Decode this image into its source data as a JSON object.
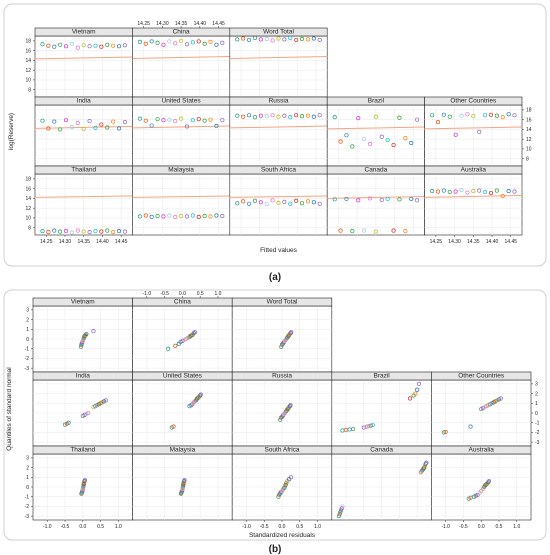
{
  "figure": {
    "panel_a_label": "(a)",
    "panel_b_label": "(b)"
  },
  "chart_data": [
    {
      "type": "scatter",
      "id": "a",
      "xlabel": "Fitted values",
      "ylabel": "log(Reserve)",
      "xlim": [
        14.22,
        14.48
      ],
      "ylim": [
        6.5,
        19
      ],
      "xticks": [
        14.25,
        14.3,
        14.35,
        14.4,
        14.45
      ],
      "yticks": [
        8,
        10,
        12,
        14,
        16,
        18
      ],
      "panels": [
        {
          "title": "Vietnam",
          "fit": [
            14.3,
            14.7
          ],
          "values": [
            17.3,
            17.0,
            16.8,
            17.2,
            16.9,
            17.4,
            16.6,
            17.1,
            16.9,
            17.0,
            16.8,
            17.2,
            17.0,
            16.9,
            17.1
          ]
        },
        {
          "title": "China",
          "fit": [
            14.4,
            14.8
          ],
          "values": [
            17.8,
            17.4,
            17.9,
            17.6,
            17.2,
            17.9,
            17.5,
            18.0,
            17.3,
            17.7,
            17.9,
            17.4,
            17.8,
            17.2,
            17.6
          ]
        },
        {
          "title": "Word Total",
          "fit": [
            14.4,
            14.8
          ],
          "values": [
            18.3,
            18.5,
            18.2,
            18.6,
            18.3,
            18.4,
            18.1,
            18.5,
            18.3,
            18.6,
            18.2,
            18.4,
            18.3,
            18.5,
            18.2
          ]
        },
        {
          "title": "India",
          "fit": [
            14.2,
            14.6
          ],
          "values": [
            15.8,
            14.2,
            15.6,
            14.0,
            15.9,
            14.5,
            15.3,
            14.1,
            15.7,
            14.3,
            15.0,
            14.4,
            15.6,
            14.2,
            15.5
          ]
        },
        {
          "title": "United States",
          "fit": [
            14.3,
            14.7
          ],
          "values": [
            16.2,
            15.8,
            14.8,
            16.1,
            15.9,
            16.0,
            15.7,
            16.2,
            14.6,
            15.9,
            16.1,
            15.8,
            16.0,
            14.7,
            15.9
          ]
        },
        {
          "title": "Russia",
          "fit": [
            14.3,
            14.7
          ],
          "values": [
            16.8,
            16.6,
            16.9,
            16.5,
            16.8,
            16.7,
            16.9,
            16.6,
            16.8,
            16.5,
            16.9,
            16.7,
            16.8,
            16.6,
            16.9
          ]
        },
        {
          "title": "Brazil",
          "fit": [
            14.1,
            14.5
          ],
          "values": [
            16.5,
            11.5,
            12.8,
            10.5,
            16.3,
            12.0,
            11.0,
            16.6,
            12.5,
            11.8,
            10.8,
            16.4,
            12.2,
            11.2,
            16.0
          ]
        },
        {
          "title": "Other Countries",
          "fit": [
            14.1,
            14.5
          ],
          "values": [
            16.9,
            15.5,
            17.0,
            16.6,
            12.9,
            16.8,
            17.1,
            16.7,
            13.5,
            16.9,
            17.0,
            16.8,
            16.5,
            17.1,
            16.9
          ]
        },
        {
          "title": "Thailand",
          "fit": [
            14.2,
            14.5
          ],
          "values": [
            7.3,
            7.1,
            7.4,
            7.2,
            7.3,
            7.0,
            7.4,
            7.2,
            7.1,
            7.3,
            7.2,
            7.4,
            7.1,
            7.3,
            7.2
          ]
        },
        {
          "title": "Malaysia",
          "fit": [
            14.2,
            14.5
          ],
          "values": [
            10.3,
            10.5,
            10.2,
            10.4,
            10.3,
            10.5,
            10.2,
            10.4,
            10.3,
            10.5,
            10.2,
            10.4,
            10.3,
            10.5,
            10.4
          ]
        },
        {
          "title": "South Africa",
          "fit": [
            14.2,
            14.5
          ],
          "values": [
            13.0,
            13.4,
            12.9,
            13.5,
            13.2,
            12.8,
            13.6,
            13.1,
            13.3,
            12.9,
            13.5,
            13.0,
            13.4,
            13.2,
            12.9
          ]
        },
        {
          "title": "Canada",
          "fit": [
            14.0,
            14.4
          ],
          "values": [
            13.8,
            7.4,
            13.9,
            7.3,
            13.6,
            7.4,
            14.0,
            7.2,
            13.7,
            13.9,
            7.4,
            13.8,
            7.3,
            13.9,
            13.6
          ]
        },
        {
          "title": "Australia",
          "fit": [
            14.2,
            14.6
          ],
          "values": [
            15.5,
            15.4,
            15.6,
            15.3,
            15.4,
            15.7,
            15.2,
            15.5,
            15.6,
            15.3,
            15.1,
            15.6,
            14.5,
            15.5,
            15.4
          ]
        }
      ]
    },
    {
      "type": "scatter",
      "id": "b",
      "xlabel": "Standardized residuals",
      "ylabel": "Quantiles of standard normal",
      "xlim": [
        -1.4,
        1.4
      ],
      "ylim": [
        -3.4,
        3.4
      ],
      "xticks": [
        -1.0,
        -0.5,
        0.0,
        0.5,
        1.0
      ],
      "yticks": [
        -3,
        -2,
        -1,
        0,
        1,
        2,
        3
      ],
      "panels": [
        {
          "title": "Vietnam",
          "x": [
            -0.05,
            -0.04,
            -0.03,
            -0.02,
            -0.01,
            0.0,
            0.01,
            0.02,
            0.03,
            0.04,
            0.05,
            0.06,
            0.08,
            0.1,
            0.3
          ],
          "y": [
            -0.8,
            -0.6,
            -0.5,
            -0.4,
            -0.3,
            -0.2,
            -0.1,
            0.0,
            0.1,
            0.2,
            0.3,
            0.35,
            0.4,
            0.5,
            0.8
          ]
        },
        {
          "title": "China",
          "x": [
            -0.4,
            -0.2,
            -0.1,
            -0.05,
            0.0,
            0.05,
            0.1,
            0.15,
            0.2,
            0.22,
            0.25,
            0.28,
            0.3,
            0.32,
            0.35
          ],
          "y": [
            -1.0,
            -0.7,
            -0.5,
            -0.3,
            -0.2,
            -0.1,
            0.0,
            0.1,
            0.2,
            0.3,
            0.35,
            0.4,
            0.5,
            0.6,
            0.7
          ]
        },
        {
          "title": "Word Total",
          "x": [
            -0.02,
            0.0,
            0.02,
            0.04,
            0.06,
            0.08,
            0.1,
            0.12,
            0.14,
            0.16,
            0.18,
            0.2,
            0.22,
            0.24,
            0.26
          ],
          "y": [
            -0.8,
            -0.6,
            -0.5,
            -0.4,
            -0.3,
            -0.2,
            -0.1,
            0.0,
            0.1,
            0.2,
            0.3,
            0.4,
            0.5,
            0.6,
            0.7
          ]
        },
        {
          "title": "India",
          "x": [
            -0.5,
            -0.45,
            -0.4,
            0.0,
            0.05,
            0.1,
            0.15,
            0.3,
            0.35,
            0.4,
            0.45,
            0.5,
            0.55,
            0.6,
            0.65
          ],
          "y": [
            -1.2,
            -1.1,
            -1.0,
            -0.3,
            -0.2,
            -0.1,
            0.0,
            0.6,
            0.7,
            0.8,
            0.9,
            1.0,
            1.1,
            1.2,
            1.3
          ]
        },
        {
          "title": "United States",
          "x": [
            -0.3,
            -0.25,
            0.2,
            0.25,
            0.28,
            0.3,
            0.32,
            0.35,
            0.38,
            0.4,
            0.42,
            0.45,
            0.48,
            0.5,
            0.52
          ],
          "y": [
            -1.5,
            -1.4,
            0.7,
            0.8,
            0.9,
            1.0,
            1.1,
            1.2,
            1.3,
            1.4,
            1.5,
            1.6,
            1.7,
            1.8,
            1.9
          ]
        },
        {
          "title": "Russia",
          "x": [
            -0.05,
            -0.03,
            0.0,
            0.02,
            0.04,
            0.06,
            0.08,
            0.1,
            0.12,
            0.14,
            0.16,
            0.18,
            0.2,
            0.22,
            0.24
          ],
          "y": [
            -0.7,
            -0.5,
            -0.4,
            -0.3,
            -0.2,
            -0.1,
            0.0,
            0.1,
            0.2,
            0.3,
            0.4,
            0.5,
            0.6,
            0.7,
            0.8
          ]
        },
        {
          "title": "Brazil",
          "x": [
            -1.1,
            -1.0,
            -0.9,
            -0.8,
            -0.5,
            -0.45,
            -0.4,
            -0.35,
            -0.3,
            -0.25,
            0.8,
            0.9,
            0.95,
            1.0,
            1.05
          ],
          "y": [
            -1.8,
            -1.75,
            -1.7,
            -1.65,
            -1.5,
            -1.45,
            -1.4,
            -1.35,
            -1.3,
            -1.25,
            1.5,
            1.8,
            2.0,
            2.4,
            3.0
          ]
        },
        {
          "title": "Other Countries",
          "x": [
            -1.05,
            -1.0,
            -0.3,
            0.0,
            0.05,
            0.1,
            0.15,
            0.2,
            0.25,
            0.3,
            0.35,
            0.4,
            0.45,
            0.5,
            0.55
          ],
          "y": [
            -2.0,
            -1.95,
            -1.4,
            0.4,
            0.5,
            0.6,
            0.7,
            0.8,
            0.9,
            1.0,
            1.1,
            1.2,
            1.3,
            1.4,
            1.5
          ]
        },
        {
          "title": "Thailand",
          "x": [
            -0.04,
            -0.03,
            -0.02,
            -0.01,
            0.0,
            0.0,
            0.01,
            0.01,
            0.02,
            0.02,
            0.03,
            0.03,
            0.04,
            0.05,
            0.06
          ],
          "y": [
            -0.7,
            -0.6,
            -0.5,
            -0.4,
            -0.3,
            -0.2,
            -0.1,
            0.0,
            0.1,
            0.2,
            0.3,
            0.4,
            0.5,
            0.6,
            0.7
          ]
        },
        {
          "title": "Malaysia",
          "x": [
            -0.04,
            -0.03,
            -0.02,
            -0.01,
            0.0,
            0.0,
            0.01,
            0.01,
            0.02,
            0.02,
            0.03,
            0.03,
            0.04,
            0.05,
            0.06
          ],
          "y": [
            -0.7,
            -0.6,
            -0.5,
            -0.4,
            -0.3,
            -0.2,
            -0.1,
            0.0,
            0.1,
            0.2,
            0.3,
            0.4,
            0.5,
            0.6,
            0.7
          ]
        },
        {
          "title": "South Africa",
          "x": [
            -0.1,
            -0.08,
            -0.06,
            -0.04,
            -0.02,
            0.0,
            0.02,
            0.04,
            0.06,
            0.08,
            0.1,
            0.12,
            0.15,
            0.2,
            0.25
          ],
          "y": [
            -1.0,
            -0.8,
            -0.7,
            -0.6,
            -0.5,
            -0.4,
            -0.3,
            -0.2,
            -0.1,
            0.0,
            0.2,
            0.4,
            0.6,
            0.8,
            1.0
          ]
        },
        {
          "title": "Canada",
          "x": [
            -1.2,
            -1.18,
            -1.16,
            -1.14,
            -1.12,
            -1.1,
            1.1,
            1.12,
            1.14,
            1.16,
            1.18,
            1.2,
            1.22,
            1.24,
            1.26
          ],
          "y": [
            -3.0,
            -2.8,
            -2.6,
            -2.4,
            -2.2,
            -2.0,
            1.5,
            1.6,
            1.7,
            1.8,
            1.9,
            2.0,
            2.2,
            2.4,
            2.5
          ]
        },
        {
          "title": "Australia",
          "x": [
            -0.35,
            -0.3,
            -0.2,
            -0.15,
            -0.1,
            -0.05,
            0.0,
            0.05,
            0.08,
            0.1,
            0.12,
            0.15,
            0.18,
            0.2,
            0.22
          ],
          "y": [
            -1.2,
            -1.1,
            -1.0,
            -0.9,
            -0.8,
            -0.6,
            -0.4,
            -0.2,
            0.0,
            0.1,
            0.2,
            0.3,
            0.4,
            0.5,
            0.6
          ]
        }
      ]
    }
  ],
  "colors": {
    "points": [
      "#1f9e89",
      "#e6550d",
      "#3182bd",
      "#31a354",
      "#d62fd6",
      "#9ecae1",
      "#e377c2",
      "#bcbd22",
      "#8c6bb1",
      "#17becf",
      "#d62728",
      "#2ca02c",
      "#ff7f0e",
      "#1f77b4",
      "#9467bd"
    ],
    "fit_line": "#f4a582",
    "strip": "#e6e6e6",
    "grid": "#ececec",
    "axis": "#222222",
    "frame": "#cfcfcf"
  }
}
